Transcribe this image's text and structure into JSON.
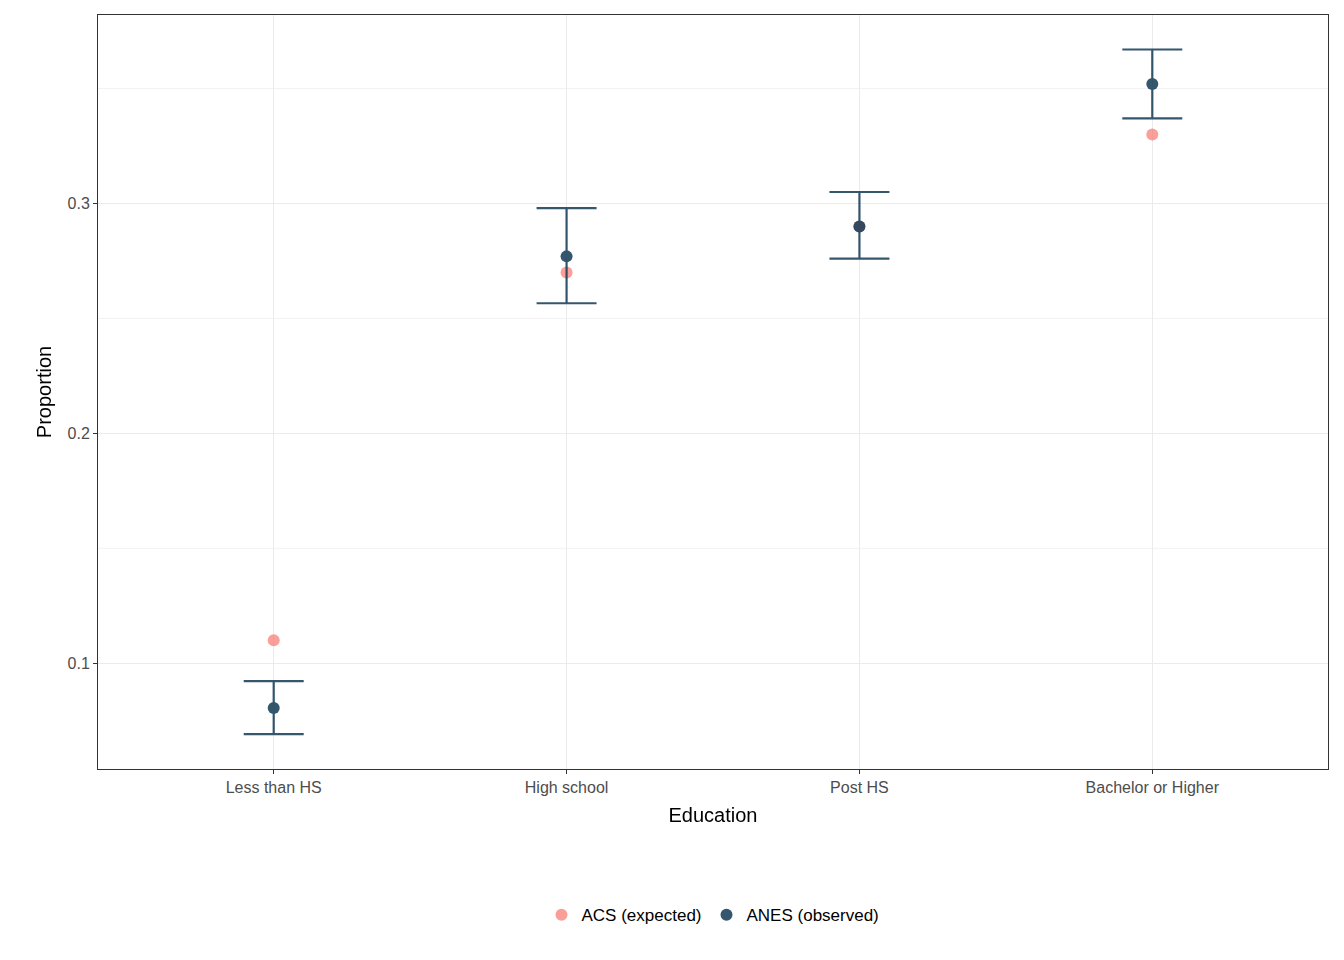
{
  "chart_data": {
    "type": "scatter",
    "x_label": "Education",
    "y_label": "Proportion",
    "categories": [
      "Less than HS",
      "High school",
      "Post HS",
      "Bachelor or Higher"
    ],
    "series": [
      {
        "name": "ACS (expected)",
        "color": "#F8766D",
        "marker": "circle",
        "values": [
          0.11,
          0.27,
          0.29,
          0.33
        ]
      },
      {
        "name": "ANES (observed)",
        "color": "#113A55",
        "marker": "circle",
        "values": [
          0.0805,
          0.277,
          0.29,
          0.352
        ],
        "error_lower": [
          0.0692,
          0.2566,
          0.276,
          0.337
        ],
        "error_upper": [
          0.0922,
          0.298,
          0.305,
          0.367
        ]
      }
    ],
    "ylim": [
      0.054,
      0.382
    ],
    "yticks": [
      0.1,
      0.2,
      0.3
    ],
    "grid": true,
    "legend": "bottom"
  }
}
